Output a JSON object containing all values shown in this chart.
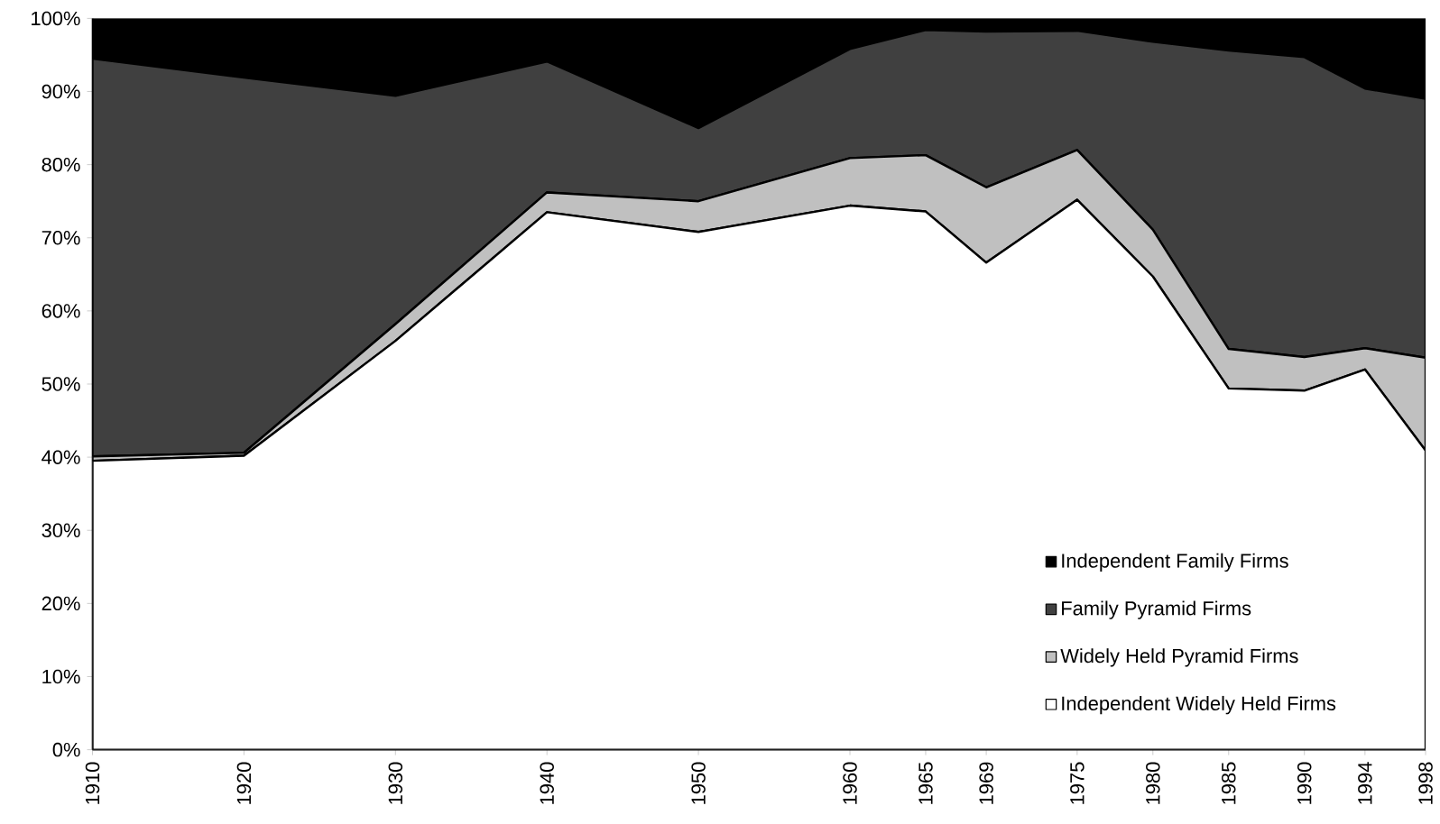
{
  "chart_data": {
    "type": "area",
    "stacked": true,
    "legend": "bottom right",
    "x": [
      1910,
      1920,
      1930,
      1940,
      1950,
      1960,
      1965,
      1969,
      1975,
      1980,
      1985,
      1990,
      1994,
      1998
    ],
    "xlim": [
      1910,
      1998
    ],
    "xticks": [
      1910,
      1920,
      1930,
      1940,
      1950,
      1960,
      1965,
      1969,
      1975,
      1980,
      1985,
      1990,
      1994,
      1998
    ],
    "ylim": [
      0,
      100
    ],
    "yticks": [
      {
        "value": 0,
        "label": "0%"
      },
      {
        "value": 10,
        "label": "10%"
      },
      {
        "value": 20,
        "label": "20%"
      },
      {
        "value": 30,
        "label": "30%"
      },
      {
        "value": 40,
        "label": "40%"
      },
      {
        "value": 50,
        "label": "50%"
      },
      {
        "value": 60,
        "label": "60%"
      },
      {
        "value": 70,
        "label": "70%"
      },
      {
        "value": 80,
        "label": "80%"
      },
      {
        "value": 90,
        "label": "90%"
      },
      {
        "value": 100,
        "label": "100%"
      }
    ],
    "series": [
      {
        "name": "Independent Widely Held Firms",
        "color": "#ffffff",
        "values": [
          39.5,
          40.2,
          55.9,
          73.5,
          70.8,
          74.4,
          73.6,
          66.6,
          75.2,
          64.7,
          49.4,
          49.1,
          52.0,
          40.9
        ]
      },
      {
        "name": "Widely Held Pyramid Firms",
        "color": "#c0c0c0",
        "values": [
          0.6,
          0.4,
          2.3,
          2.7,
          4.2,
          6.5,
          7.7,
          10.3,
          6.8,
          6.4,
          5.4,
          4.6,
          2.9,
          12.7
        ]
      },
      {
        "name": "Family Pyramid Firms",
        "color": "#404040",
        "values": [
          54.4,
          51.3,
          31.2,
          17.9,
          10.0,
          14.9,
          17.1,
          21.3,
          16.3,
          25.7,
          40.8,
          41.0,
          35.5,
          35.4
        ]
      },
      {
        "name": "Independent Family Firms",
        "color": "#000000",
        "values": [
          5.5,
          8.1,
          10.6,
          5.9,
          15.0,
          4.2,
          1.6,
          1.8,
          1.7,
          3.2,
          4.4,
          5.3,
          9.6,
          11.0
        ]
      }
    ]
  }
}
